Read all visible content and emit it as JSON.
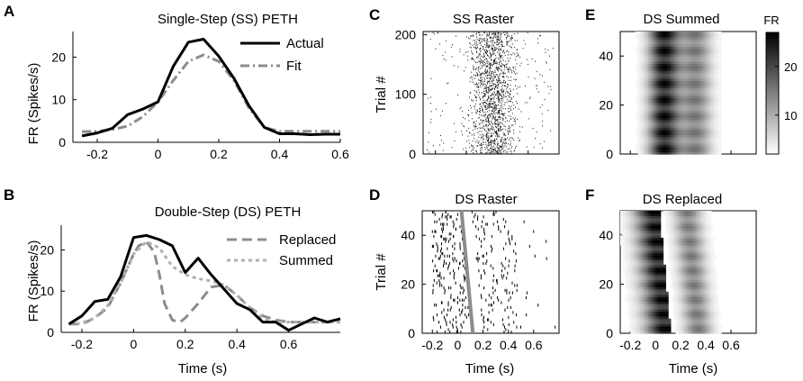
{
  "chart_data": [
    {
      "panel": "A",
      "type": "line",
      "title": "Single-Step (SS) PETH",
      "xlabel": "",
      "ylabel": "FR (Spikes/s)",
      "xlim": [
        -0.28,
        0.6
      ],
      "ylim": [
        0,
        26
      ],
      "xticks": [
        -0.2,
        0,
        0.2,
        0.4,
        0.6
      ],
      "yticks": [
        0,
        10,
        20
      ],
      "legend_position": "top-right",
      "series": [
        {
          "name": "Actual",
          "style": "solid",
          "color": "#000000",
          "x": [
            -0.25,
            -0.2,
            -0.15,
            -0.1,
            -0.05,
            0,
            0.05,
            0.1,
            0.15,
            0.2,
            0.25,
            0.3,
            0.35,
            0.4,
            0.45,
            0.5,
            0.55,
            0.6
          ],
          "y": [
            1.5,
            2.2,
            3.3,
            6.5,
            7.8,
            9.5,
            17.8,
            23.5,
            24.2,
            20.2,
            15.0,
            8.5,
            3.5,
            2.0,
            2.0,
            1.8,
            1.9,
            1.9
          ]
        },
        {
          "name": "Fit",
          "style": "dashdot",
          "color": "#8c8c8c",
          "x": [
            -0.25,
            -0.2,
            -0.15,
            -0.1,
            -0.05,
            0,
            0.05,
            0.1,
            0.15,
            0.2,
            0.25,
            0.3,
            0.35,
            0.4,
            0.45,
            0.5,
            0.55,
            0.6
          ],
          "y": [
            2.5,
            2.6,
            3.0,
            3.8,
            6.0,
            9.5,
            14.5,
            19.0,
            20.5,
            19.0,
            14.5,
            8.0,
            3.5,
            2.6,
            2.6,
            2.6,
            2.6,
            2.6
          ]
        }
      ]
    },
    {
      "panel": "B",
      "type": "line",
      "title": "Double-Step (DS) PETH",
      "xlabel": "Time (s)",
      "ylabel": "FR (Spikes/s)",
      "xlim": [
        -0.28,
        0.8
      ],
      "ylim": [
        0,
        26
      ],
      "xticks": [
        -0.2,
        0,
        0.2,
        0.4,
        0.6
      ],
      "yticks": [
        0,
        10,
        20
      ],
      "legend_position": "top-right",
      "series": [
        {
          "name": "Actual",
          "style": "solid",
          "color": "#000000",
          "x": [
            -0.25,
            -0.2,
            -0.15,
            -0.1,
            -0.05,
            0,
            0.05,
            0.1,
            0.15,
            0.2,
            0.25,
            0.3,
            0.35,
            0.4,
            0.45,
            0.5,
            0.55,
            0.6,
            0.65,
            0.7,
            0.75,
            0.8
          ],
          "y": [
            2.0,
            4.0,
            7.5,
            8.0,
            13.5,
            23.0,
            23.5,
            22.5,
            21.0,
            14.5,
            18.0,
            14.0,
            10.5,
            7.0,
            5.5,
            2.5,
            2.5,
            0.5,
            2.0,
            3.5,
            2.5,
            3.3
          ]
        },
        {
          "name": "Replaced",
          "style": "dashed",
          "color": "#8c8c8c",
          "x": [
            -0.25,
            -0.2,
            -0.15,
            -0.1,
            -0.05,
            0,
            0.02,
            0.05,
            0.08,
            0.1,
            0.12,
            0.15,
            0.18,
            0.2,
            0.25,
            0.3,
            0.35,
            0.4,
            0.45,
            0.5,
            0.55,
            0.6,
            0.65,
            0.7,
            0.75,
            0.8
          ],
          "y": [
            2.0,
            2.0,
            3.5,
            6.0,
            12.0,
            19.0,
            21.0,
            22.0,
            19.5,
            14.0,
            7.0,
            3.0,
            2.5,
            3.5,
            7.0,
            11.0,
            11.5,
            9.0,
            6.0,
            4.0,
            3.0,
            2.5,
            2.5,
            2.5,
            2.5,
            2.5
          ]
        },
        {
          "name": "Summed",
          "style": "dotted",
          "color": "#b0b0b0",
          "x": [
            -0.25,
            -0.2,
            -0.15,
            -0.1,
            -0.05,
            0,
            0.05,
            0.1,
            0.15,
            0.2,
            0.25,
            0.3,
            0.35,
            0.4,
            0.45,
            0.5,
            0.55,
            0.6,
            0.65,
            0.7,
            0.75,
            0.8
          ],
          "y": [
            2.0,
            2.3,
            3.5,
            6.5,
            12.0,
            19.0,
            22.0,
            20.5,
            16.0,
            14.0,
            13.0,
            12.5,
            11.5,
            9.0,
            6.0,
            3.5,
            2.5,
            2.5,
            2.5,
            2.5,
            2.5,
            2.5
          ]
        }
      ]
    },
    {
      "panel": "C",
      "type": "scatter",
      "title": "SS Raster",
      "ylabel": "Trial #",
      "xlim": [
        -0.28,
        0.6
      ],
      "ylim": [
        0,
        205
      ],
      "yticks": [
        0,
        100,
        200
      ],
      "n_trials": 205,
      "description_values": {
        "burst_window": [
          -0.05,
          0.35
        ],
        "trials": 205
      }
    },
    {
      "panel": "D",
      "type": "scatter",
      "title": "DS Raster",
      "xlabel": "Time (s)",
      "ylabel": "Trial #",
      "xlim": [
        -0.28,
        0.8
      ],
      "ylim": [
        0,
        50
      ],
      "xticks": [
        -0.2,
        0,
        0.2,
        0.4,
        0.6
      ],
      "yticks": [
        0,
        20,
        40
      ],
      "n_trials": 50,
      "marker_line": {
        "color": "#8c8c8c",
        "x_at_trial_0": 0.12,
        "x_at_trial_50": 0.03
      }
    },
    {
      "panel": "E",
      "type": "heatmap",
      "title": "DS Summed",
      "xlim": [
        -0.28,
        0.8
      ],
      "ylim": [
        0,
        50
      ],
      "yticks": [
        0,
        20,
        40
      ],
      "colorbar": {
        "label": "FR",
        "ticks": [
          10,
          20
        ],
        "range": [
          2,
          27
        ]
      }
    },
    {
      "panel": "F",
      "type": "heatmap",
      "title": "DS Replaced",
      "xlabel": "Time (s)",
      "xlim": [
        -0.28,
        0.8
      ],
      "ylim": [
        0,
        50
      ],
      "xticks": [
        -0.2,
        0,
        0.2,
        0.4,
        0.6
      ],
      "yticks": [
        0,
        20,
        40
      ],
      "edge_x_at_trial_0": 0.12,
      "edge_x_at_trial_50": 0.03
    }
  ],
  "labels": {
    "A": "A",
    "B": "B",
    "C": "C",
    "D": "D",
    "E": "E",
    "F": "F"
  }
}
